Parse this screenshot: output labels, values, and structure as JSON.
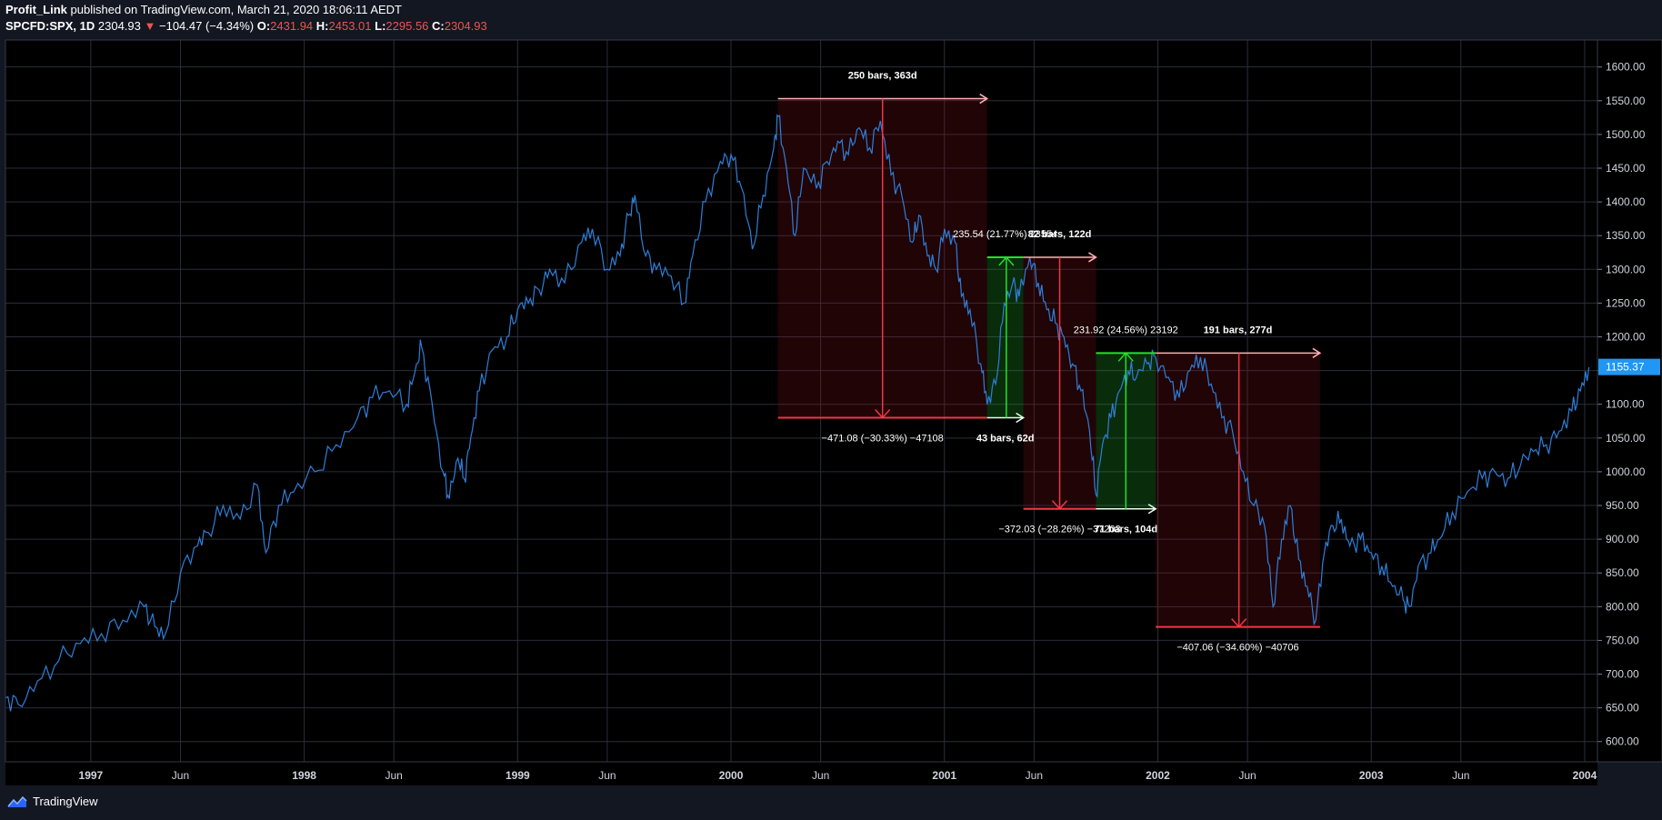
{
  "header": {
    "author": "Profit_Link",
    "published_text": "published on TradingView.com, March 21, 2020 18:06:11 AEDT",
    "symbol": "SPCFD:SPX, 1D",
    "last": "2304.93",
    "change": "−104.47 (−4.34%)",
    "o_label": "O:",
    "o": "2431.94",
    "h_label": "H:",
    "h": "2453.01",
    "l_label": "L:",
    "l": "2295.56",
    "c_label": "C:",
    "c": "2304.93"
  },
  "footer": {
    "brand": "TradingView"
  },
  "colors": {
    "background": "#000000",
    "price_line": "#2f7ed8",
    "grid": "#2a2e39",
    "drop": "#f23645",
    "rise": "#22e02a",
    "last_price_badge": "#2196f3"
  },
  "chart_data": {
    "type": "line",
    "symbol": "SPCFD:SPX",
    "interval": "1D",
    "ylim": [
      570,
      1640
    ],
    "y_ticks": [
      "1600.00",
      "1550.00",
      "1500.00",
      "1450.00",
      "1400.00",
      "1350.00",
      "1300.00",
      "1250.00",
      "1200.00",
      "1150.00",
      "1100.00",
      "1050.00",
      "1000.00",
      "950.00",
      "900.00",
      "850.00",
      "800.00",
      "750.00",
      "700.00",
      "650.00",
      "600.00"
    ],
    "x_ticks": [
      {
        "label": "1997",
        "t": 1997.0
      },
      {
        "label": "Jun",
        "t": 1997.42
      },
      {
        "label": "1998",
        "t": 1998.0
      },
      {
        "label": "Jun",
        "t": 1998.42
      },
      {
        "label": "1999",
        "t": 1999.0
      },
      {
        "label": "Jun",
        "t": 1999.42
      },
      {
        "label": "2000",
        "t": 2000.0
      },
      {
        "label": "Jun",
        "t": 2000.42
      },
      {
        "label": "2001",
        "t": 2001.0
      },
      {
        "label": "Jun",
        "t": 2001.42
      },
      {
        "label": "2002",
        "t": 2002.0
      },
      {
        "label": "Jun",
        "t": 2002.42
      },
      {
        "label": "2003",
        "t": 2003.0
      },
      {
        "label": "Jun",
        "t": 2003.42
      },
      {
        "label": "2004",
        "t": 2004.0
      }
    ],
    "last_price_label": "1155.37",
    "series": [
      {
        "points": [
          [
            1996.6,
            665
          ],
          [
            1996.66,
            655
          ],
          [
            1996.75,
            690
          ],
          [
            1996.85,
            720
          ],
          [
            1996.95,
            745
          ],
          [
            1997.05,
            760
          ],
          [
            1997.15,
            780
          ],
          [
            1997.25,
            800
          ],
          [
            1997.3,
            770
          ],
          [
            1997.35,
            760
          ],
          [
            1997.42,
            850
          ],
          [
            1997.5,
            890
          ],
          [
            1997.55,
            910
          ],
          [
            1997.62,
            950
          ],
          [
            1997.7,
            930
          ],
          [
            1997.78,
            980
          ],
          [
            1997.82,
            880
          ],
          [
            1997.88,
            950
          ],
          [
            1997.95,
            970
          ],
          [
            1998.05,
            1000
          ],
          [
            1998.15,
            1040
          ],
          [
            1998.25,
            1080
          ],
          [
            1998.32,
            1110
          ],
          [
            1998.4,
            1120
          ],
          [
            1998.48,
            1100
          ],
          [
            1998.52,
            1150
          ],
          [
            1998.55,
            1185
          ],
          [
            1998.6,
            1100
          ],
          [
            1998.65,
            1000
          ],
          [
            1998.68,
            960
          ],
          [
            1998.72,
            1020
          ],
          [
            1998.75,
            990
          ],
          [
            1998.78,
            1050
          ],
          [
            1998.82,
            1120
          ],
          [
            1998.88,
            1180
          ],
          [
            1998.95,
            1200
          ],
          [
            1999.0,
            1240
          ],
          [
            1999.05,
            1250
          ],
          [
            1999.1,
            1270
          ],
          [
            1999.15,
            1300
          ],
          [
            1999.22,
            1280
          ],
          [
            1999.3,
            1340
          ],
          [
            1999.35,
            1360
          ],
          [
            1999.42,
            1300
          ],
          [
            1999.48,
            1320
          ],
          [
            1999.52,
            1380
          ],
          [
            1999.55,
            1410
          ],
          [
            1999.6,
            1320
          ],
          [
            1999.65,
            1300
          ],
          [
            1999.72,
            1290
          ],
          [
            1999.78,
            1250
          ],
          [
            1999.82,
            1320
          ],
          [
            1999.88,
            1400
          ],
          [
            1999.95,
            1460
          ],
          [
            2000.0,
            1470
          ],
          [
            2000.05,
            1420
          ],
          [
            2000.1,
            1330
          ],
          [
            2000.15,
            1410
          ],
          [
            2000.2,
            1480
          ],
          [
            2000.22,
            1527
          ],
          [
            2000.26,
            1450
          ],
          [
            2000.3,
            1350
          ],
          [
            2000.34,
            1450
          ],
          [
            2000.4,
            1420
          ],
          [
            2000.45,
            1460
          ],
          [
            2000.5,
            1490
          ],
          [
            2000.55,
            1470
          ],
          [
            2000.6,
            1510
          ],
          [
            2000.65,
            1480
          ],
          [
            2000.7,
            1520
          ],
          [
            2000.75,
            1440
          ],
          [
            2000.8,
            1410
          ],
          [
            2000.85,
            1340
          ],
          [
            2000.88,
            1380
          ],
          [
            2000.92,
            1320
          ],
          [
            2000.96,
            1300
          ],
          [
            2001.0,
            1360
          ],
          [
            2001.05,
            1340
          ],
          [
            2001.08,
            1260
          ],
          [
            2001.12,
            1240
          ],
          [
            2001.17,
            1160
          ],
          [
            2001.2,
            1100
          ],
          [
            2001.24,
            1130
          ],
          [
            2001.28,
            1250
          ],
          [
            2001.32,
            1280
          ],
          [
            2001.35,
            1260
          ],
          [
            2001.4,
            1318
          ],
          [
            2001.44,
            1280
          ],
          [
            2001.48,
            1240
          ],
          [
            2001.52,
            1220
          ],
          [
            2001.56,
            1200
          ],
          [
            2001.6,
            1160
          ],
          [
            2001.64,
            1120
          ],
          [
            2001.68,
            1060
          ],
          [
            2001.71,
            966
          ],
          [
            2001.74,
            1040
          ],
          [
            2001.78,
            1080
          ],
          [
            2001.82,
            1120
          ],
          [
            2001.86,
            1150
          ],
          [
            2001.9,
            1140
          ],
          [
            2001.95,
            1160
          ],
          [
            2001.99,
            1170
          ],
          [
            2002.05,
            1140
          ],
          [
            2002.1,
            1110
          ],
          [
            2002.15,
            1150
          ],
          [
            2002.2,
            1170
          ],
          [
            2002.25,
            1130
          ],
          [
            2002.3,
            1080
          ],
          [
            2002.35,
            1060
          ],
          [
            2002.4,
            1000
          ],
          [
            2002.45,
            950
          ],
          [
            2002.5,
            920
          ],
          [
            2002.54,
            800
          ],
          [
            2002.58,
            900
          ],
          [
            2002.62,
            950
          ],
          [
            2002.66,
            870
          ],
          [
            2002.7,
            830
          ],
          [
            2002.74,
            780
          ],
          [
            2002.78,
            880
          ],
          [
            2002.82,
            920
          ],
          [
            2002.86,
            930
          ],
          [
            2002.9,
            890
          ],
          [
            2002.95,
            900
          ],
          [
            2003.0,
            880
          ],
          [
            2003.05,
            860
          ],
          [
            2003.1,
            830
          ],
          [
            2003.15,
            810
          ],
          [
            2003.18,
            800
          ],
          [
            2003.22,
            860
          ],
          [
            2003.28,
            880
          ],
          [
            2003.32,
            900
          ],
          [
            2003.38,
            940
          ],
          [
            2003.45,
            970
          ],
          [
            2003.52,
            990
          ],
          [
            2003.58,
            1000
          ],
          [
            2003.64,
            990
          ],
          [
            2003.7,
            1010
          ],
          [
            2003.76,
            1030
          ],
          [
            2003.82,
            1040
          ],
          [
            2003.88,
            1060
          ],
          [
            2003.94,
            1090
          ],
          [
            2003.98,
            1120
          ],
          [
            2004.02,
            1155
          ]
        ]
      }
    ],
    "annotations": [
      {
        "kind": "drop",
        "t0": 2000.22,
        "t1": 2001.2,
        "y_top": 1553,
        "y_bottom": 1080,
        "arrow_t": 2000.71,
        "top_label": "250 bars, 363d",
        "bottom_label": "−471.08 (−30.33%) −47108"
      },
      {
        "kind": "rise",
        "t0": 2001.2,
        "t1": 2001.37,
        "y_top": 1318,
        "y_bottom": 1080,
        "arrow_t": 2001.29,
        "top_label": "235.54 (21.77%) 23554",
        "bottom_label": "43 bars, 62d"
      },
      {
        "kind": "drop",
        "t0": 2001.37,
        "t1": 2001.71,
        "y_top": 1318,
        "y_bottom": 945,
        "arrow_t": 2001.54,
        "top_label": "82 bars, 122d",
        "bottom_label": "−372.03 (−28.26%) −37203"
      },
      {
        "kind": "rise",
        "t0": 2001.71,
        "t1": 2001.99,
        "y_top": 1176,
        "y_bottom": 945,
        "arrow_t": 2001.85,
        "top_label": "231.92 (24.56%) 23192",
        "bottom_label": "71 bars, 104d"
      },
      {
        "kind": "drop",
        "t0": 2001.99,
        "t1": 2002.76,
        "y_top": 1176,
        "y_bottom": 770,
        "arrow_t": 2002.38,
        "top_label": "191 bars, 277d",
        "bottom_label": "−407.06 (−34.60%) −40706"
      }
    ]
  }
}
